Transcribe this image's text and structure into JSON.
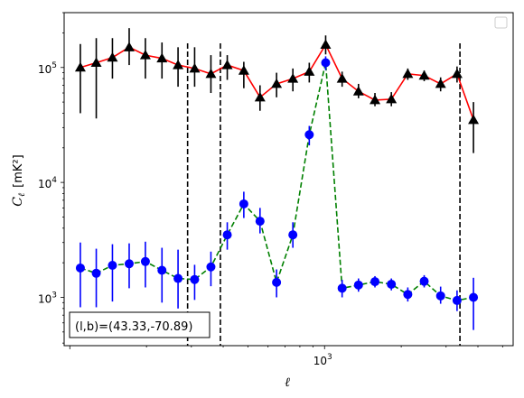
{
  "chart_data": {
    "type": "scatter",
    "xlabel": "ℓ",
    "ylabel_main": "C",
    "ylabel_sub": "ℓ",
    "ylabel_unit": "[mK²]",
    "x_scale": "log",
    "y_scale": "log",
    "xlim": [
      95,
      5500
    ],
    "ylim": [
      380,
      300000
    ],
    "x_tick_labels": [
      {
        "value": 1000,
        "base": "10",
        "exp": "3"
      }
    ],
    "y_tick_labels": [
      {
        "value": 1000,
        "base": "10",
        "exp": "3"
      },
      {
        "value": 10000,
        "base": "10",
        "exp": "4"
      },
      {
        "value": 100000,
        "base": "10",
        "exp": "5"
      }
    ],
    "vertical_dashed_lines": [
      290,
      390,
      3400
    ],
    "annotation": "(l,b)=(43.33,-70.89)",
    "legend": "top-right (empty)",
    "grid": false,
    "series": [
      {
        "marker": "triangle",
        "marker_color": "#000000",
        "line_color": "#ff0000",
        "line_style": "solid",
        "points": [
          {
            "x": 110,
            "y": 100000,
            "lo": 40000,
            "hi": 160000
          },
          {
            "x": 127,
            "y": 110000,
            "lo": 36000,
            "hi": 180000
          },
          {
            "x": 147,
            "y": 122000,
            "lo": 80000,
            "hi": 180000
          },
          {
            "x": 171,
            "y": 150000,
            "lo": 105000,
            "hi": 220000
          },
          {
            "x": 198,
            "y": 128000,
            "lo": 80000,
            "hi": 180000
          },
          {
            "x": 230,
            "y": 120000,
            "lo": 80000,
            "hi": 165000
          },
          {
            "x": 266,
            "y": 105000,
            "lo": 68000,
            "hi": 150000
          },
          {
            "x": 309,
            "y": 98000,
            "lo": 68000,
            "hi": 150000
          },
          {
            "x": 358,
            "y": 88000,
            "lo": 60000,
            "hi": 128000
          },
          {
            "x": 415,
            "y": 105000,
            "lo": 78000,
            "hi": 128000
          },
          {
            "x": 482,
            "y": 94000,
            "lo": 66000,
            "hi": 112000
          },
          {
            "x": 558,
            "y": 55000,
            "lo": 42000,
            "hi": 70000
          },
          {
            "x": 648,
            "y": 72000,
            "lo": 55000,
            "hi": 90000
          },
          {
            "x": 751,
            "y": 80000,
            "lo": 62000,
            "hi": 98000
          },
          {
            "x": 871,
            "y": 92000,
            "lo": 74000,
            "hi": 110000
          },
          {
            "x": 1010,
            "y": 158000,
            "lo": 130000,
            "hi": 190000
          },
          {
            "x": 1172,
            "y": 80000,
            "lo": 68000,
            "hi": 92000
          },
          {
            "x": 1359,
            "y": 62000,
            "lo": 54000,
            "hi": 72000
          },
          {
            "x": 1577,
            "y": 52000,
            "lo": 46000,
            "hi": 60000
          },
          {
            "x": 1829,
            "y": 53000,
            "lo": 46000,
            "hi": 61000
          },
          {
            "x": 2122,
            "y": 88000,
            "lo": 78000,
            "hi": 98000
          },
          {
            "x": 2461,
            "y": 85000,
            "lo": 76000,
            "hi": 94000
          },
          {
            "x": 2855,
            "y": 72000,
            "lo": 62000,
            "hi": 82000
          },
          {
            "x": 3312,
            "y": 88000,
            "lo": 74000,
            "hi": 102000
          },
          {
            "x": 3842,
            "y": 35000,
            "lo": 18000,
            "hi": 50000
          }
        ]
      },
      {
        "marker": "circle",
        "marker_color": "#0000ff",
        "line_color": "#008000",
        "line_style": "dashed",
        "points": [
          {
            "x": 110,
            "y": 1800,
            "lo": 820,
            "hi": 3000
          },
          {
            "x": 127,
            "y": 1620,
            "lo": 820,
            "hi": 2650
          },
          {
            "x": 147,
            "y": 1900,
            "lo": 920,
            "hi": 2900
          },
          {
            "x": 171,
            "y": 1960,
            "lo": 1200,
            "hi": 2950
          },
          {
            "x": 198,
            "y": 2050,
            "lo": 1220,
            "hi": 3050
          },
          {
            "x": 230,
            "y": 1720,
            "lo": 900,
            "hi": 2700
          },
          {
            "x": 266,
            "y": 1460,
            "lo": 800,
            "hi": 2600
          },
          {
            "x": 309,
            "y": 1430,
            "lo": 950,
            "hi": 1920
          },
          {
            "x": 358,
            "y": 1840,
            "lo": 1250,
            "hi": 2500
          },
          {
            "x": 415,
            "y": 3500,
            "lo": 2600,
            "hi": 4500
          },
          {
            "x": 482,
            "y": 6500,
            "lo": 4900,
            "hi": 8300
          },
          {
            "x": 558,
            "y": 4600,
            "lo": 3600,
            "hi": 6000
          },
          {
            "x": 648,
            "y": 1350,
            "lo": 1000,
            "hi": 1750
          },
          {
            "x": 751,
            "y": 3500,
            "lo": 2700,
            "hi": 4500
          },
          {
            "x": 871,
            "y": 26000,
            "lo": 21000,
            "hi": 31000
          },
          {
            "x": 1010,
            "y": 110000,
            "lo": 95000,
            "hi": 125000
          },
          {
            "x": 1172,
            "y": 1200,
            "lo": 1000,
            "hi": 1420
          },
          {
            "x": 1359,
            "y": 1280,
            "lo": 1120,
            "hi": 1460
          },
          {
            "x": 1577,
            "y": 1370,
            "lo": 1220,
            "hi": 1530
          },
          {
            "x": 1829,
            "y": 1300,
            "lo": 1150,
            "hi": 1460
          },
          {
            "x": 2122,
            "y": 1060,
            "lo": 920,
            "hi": 1220
          },
          {
            "x": 2461,
            "y": 1380,
            "lo": 1220,
            "hi": 1560
          },
          {
            "x": 2855,
            "y": 1030,
            "lo": 880,
            "hi": 1240
          },
          {
            "x": 3312,
            "y": 940,
            "lo": 760,
            "hi": 1150
          },
          {
            "x": 3842,
            "y": 1000,
            "lo": 520,
            "hi": 1480
          }
        ]
      }
    ]
  }
}
